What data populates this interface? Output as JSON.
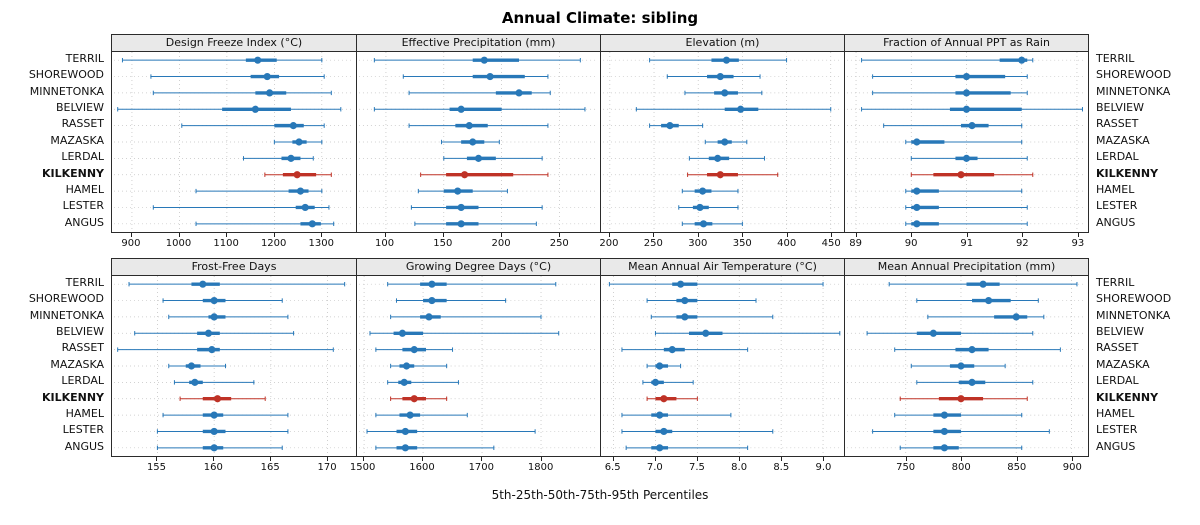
{
  "chart_data": {
    "type": "dot-interval",
    "title": "Annual Climate: sibling",
    "caption": "5th-25th-50th-75th-95th Percentiles",
    "percentiles": [
      5,
      25,
      50,
      75,
      95
    ],
    "grid": "dotted",
    "sites": [
      "TERRIL",
      "SHOREWOOD",
      "MINNETONKA",
      "BELVIEW",
      "RASSET",
      "MAZASKA",
      "LERDAL",
      "KILKENNY",
      "HAMEL",
      "LESTER",
      "ANGUS"
    ],
    "highlight_site": "KILKENNY",
    "colors": {
      "normal": "#2878b8",
      "highlight": "#bf3226"
    },
    "panels": [
      {
        "title": "Design Freeze Index (°C)",
        "xlim": [
          858,
          1372
        ],
        "ticks": [
          900,
          1000,
          1100,
          1200,
          1300
        ],
        "tick_labels": [
          "900",
          "1000",
          "1100",
          "1200",
          "1300"
        ],
        "values": [
          [
            880,
            1140,
            1165,
            1205,
            1300
          ],
          [
            940,
            1150,
            1185,
            1210,
            1305
          ],
          [
            945,
            1160,
            1190,
            1225,
            1320
          ],
          [
            870,
            1090,
            1160,
            1235,
            1340
          ],
          [
            1005,
            1200,
            1240,
            1262,
            1305
          ],
          [
            1200,
            1238,
            1252,
            1268,
            1300
          ],
          [
            1135,
            1215,
            1235,
            1255,
            1282
          ],
          [
            1180,
            1218,
            1248,
            1288,
            1320
          ],
          [
            1035,
            1230,
            1255,
            1272,
            1300
          ],
          [
            945,
            1245,
            1265,
            1285,
            1315
          ],
          [
            1035,
            1255,
            1280,
            1298,
            1325
          ]
        ]
      },
      {
        "title": "Effective Precipitation (mm)",
        "xlim": [
          75,
          285
        ],
        "ticks": [
          100,
          150,
          200,
          250
        ],
        "tick_labels": [
          "100",
          "150",
          "200",
          "250"
        ],
        "values": [
          [
            90,
            175,
            185,
            215,
            268
          ],
          [
            115,
            175,
            190,
            220,
            240
          ],
          [
            120,
            195,
            215,
            226,
            242
          ],
          [
            90,
            155,
            165,
            200,
            272
          ],
          [
            120,
            160,
            172,
            188,
            240
          ],
          [
            148,
            165,
            175,
            185,
            198
          ],
          [
            150,
            170,
            180,
            195,
            235
          ],
          [
            130,
            152,
            168,
            210,
            240
          ],
          [
            128,
            150,
            162,
            175,
            205
          ],
          [
            122,
            152,
            165,
            180,
            235
          ],
          [
            125,
            152,
            165,
            180,
            230
          ]
        ]
      },
      {
        "title": "Elevation (m)",
        "xlim": [
          190,
          465
        ],
        "ticks": [
          200,
          250,
          300,
          350,
          400,
          450
        ],
        "tick_labels": [
          "200",
          "250",
          "300",
          "350",
          "400",
          "450"
        ],
        "values": [
          [
            245,
            315,
            332,
            346,
            400
          ],
          [
            265,
            310,
            325,
            340,
            370
          ],
          [
            285,
            318,
            330,
            345,
            372
          ],
          [
            230,
            330,
            348,
            368,
            450
          ],
          [
            245,
            258,
            268,
            278,
            305
          ],
          [
            308,
            322,
            330,
            338,
            355
          ],
          [
            290,
            312,
            322,
            335,
            375
          ],
          [
            288,
            310,
            325,
            345,
            390
          ],
          [
            282,
            296,
            305,
            315,
            345
          ],
          [
            278,
            294,
            302,
            312,
            345
          ],
          [
            282,
            296,
            306,
            316,
            350
          ]
        ]
      },
      {
        "title": "Fraction of Annual PPT as Rain",
        "xlim": [
          88.8,
          93.2
        ],
        "ticks": [
          89,
          90,
          91,
          92,
          93
        ],
        "tick_labels": [
          "89",
          "90",
          "91",
          "92",
          "93"
        ],
        "values": [
          [
            89.1,
            91.6,
            92.0,
            92.1,
            92.2
          ],
          [
            89.3,
            90.8,
            91.0,
            91.7,
            92.1
          ],
          [
            89.3,
            90.8,
            91.0,
            91.8,
            92.1
          ],
          [
            89.1,
            90.7,
            91.0,
            92.0,
            93.1
          ],
          [
            89.5,
            90.9,
            91.1,
            91.4,
            92.0
          ],
          [
            89.9,
            90.0,
            90.1,
            90.6,
            92.0
          ],
          [
            90.0,
            90.8,
            91.0,
            91.2,
            92.1
          ],
          [
            90.0,
            90.4,
            90.9,
            91.5,
            92.2
          ],
          [
            89.9,
            90.0,
            90.1,
            90.5,
            92.0
          ],
          [
            89.9,
            90.0,
            90.1,
            90.5,
            92.1
          ],
          [
            89.9,
            90.0,
            90.1,
            90.5,
            92.1
          ]
        ]
      },
      {
        "title": "Frost-Free Days",
        "xlim": [
          151,
          172.5
        ],
        "ticks": [
          155,
          160,
          165,
          170
        ],
        "tick_labels": [
          "155",
          "160",
          "165",
          "170"
        ],
        "values": [
          [
            152.5,
            158,
            159,
            160.5,
            171.5
          ],
          [
            155.5,
            159,
            160,
            161,
            166
          ],
          [
            156,
            159.5,
            160,
            161,
            166.5
          ],
          [
            153,
            158.5,
            159.5,
            160.5,
            167
          ],
          [
            151.5,
            158.5,
            159.8,
            160.5,
            170.5
          ],
          [
            156,
            157.5,
            158,
            158.8,
            161
          ],
          [
            156.5,
            157.8,
            158.3,
            159,
            163.5
          ],
          [
            157,
            159,
            160.3,
            161.5,
            164.5
          ],
          [
            155.5,
            159,
            160,
            160.8,
            166.5
          ],
          [
            155,
            159,
            160,
            161,
            166.5
          ],
          [
            155,
            159,
            160,
            160.8,
            166
          ]
        ]
      },
      {
        "title": "Growing Degree Days (°C)",
        "xlim": [
          1488,
          1900
        ],
        "ticks": [
          1500,
          1600,
          1700,
          1800
        ],
        "tick_labels": [
          "1500",
          "1600",
          "1700",
          "1800"
        ],
        "values": [
          [
            1540,
            1595,
            1615,
            1640,
            1825
          ],
          [
            1555,
            1600,
            1615,
            1640,
            1740
          ],
          [
            1545,
            1595,
            1610,
            1630,
            1800
          ],
          [
            1510,
            1550,
            1565,
            1600,
            1830
          ],
          [
            1520,
            1565,
            1585,
            1605,
            1650
          ],
          [
            1545,
            1560,
            1572,
            1585,
            1640
          ],
          [
            1540,
            1558,
            1568,
            1580,
            1660
          ],
          [
            1545,
            1565,
            1585,
            1605,
            1640
          ],
          [
            1520,
            1560,
            1578,
            1595,
            1675
          ],
          [
            1505,
            1555,
            1570,
            1590,
            1790
          ],
          [
            1520,
            1555,
            1570,
            1590,
            1720
          ]
        ]
      },
      {
        "title": "Mean Annual Air Temperature (°C)",
        "xlim": [
          6.35,
          9.25
        ],
        "ticks": [
          6.5,
          7.0,
          7.5,
          8.0,
          8.5,
          9.0
        ],
        "tick_labels": [
          "6.5",
          "7.0",
          "7.5",
          "8.0",
          "8.5",
          "9.0"
        ],
        "values": [
          [
            6.45,
            7.2,
            7.3,
            7.5,
            9.0
          ],
          [
            6.9,
            7.25,
            7.35,
            7.5,
            8.2
          ],
          [
            6.95,
            7.25,
            7.35,
            7.5,
            8.4
          ],
          [
            7.0,
            7.4,
            7.6,
            7.8,
            9.2
          ],
          [
            6.6,
            7.1,
            7.2,
            7.35,
            8.1
          ],
          [
            6.9,
            7.0,
            7.05,
            7.15,
            7.3
          ],
          [
            6.85,
            6.95,
            7.0,
            7.1,
            7.45
          ],
          [
            6.9,
            7.0,
            7.1,
            7.25,
            7.5
          ],
          [
            6.6,
            6.95,
            7.05,
            7.15,
            7.9
          ],
          [
            6.6,
            7.0,
            7.1,
            7.2,
            8.4
          ],
          [
            6.65,
            6.95,
            7.05,
            7.15,
            8.1
          ]
        ]
      },
      {
        "title": "Mean Annual Precipitation (mm)",
        "xlim": [
          695,
          915
        ],
        "ticks": [
          750,
          800,
          850,
          900
        ],
        "tick_labels": [
          "750",
          "800",
          "850",
          "900"
        ],
        "values": [
          [
            735,
            805,
            820,
            835,
            905
          ],
          [
            760,
            810,
            825,
            845,
            870
          ],
          [
            770,
            830,
            850,
            860,
            875
          ],
          [
            715,
            760,
            775,
            800,
            865
          ],
          [
            740,
            795,
            810,
            825,
            890
          ],
          [
            755,
            790,
            800,
            812,
            840
          ],
          [
            760,
            798,
            810,
            822,
            865
          ],
          [
            745,
            780,
            800,
            820,
            860
          ],
          [
            740,
            775,
            785,
            800,
            855
          ],
          [
            720,
            775,
            785,
            800,
            880
          ],
          [
            745,
            775,
            785,
            798,
            855
          ]
        ]
      }
    ]
  }
}
